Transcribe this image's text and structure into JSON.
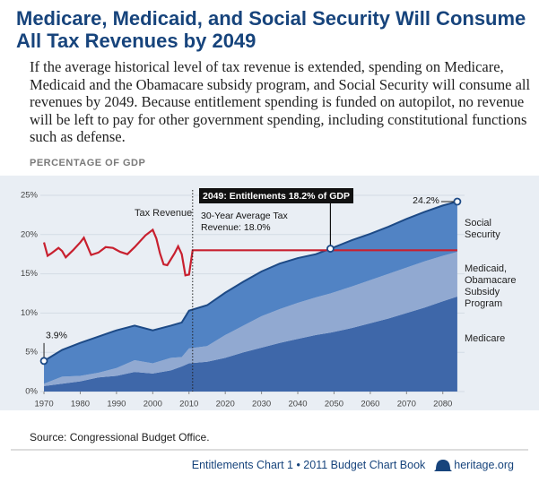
{
  "chart_data": {
    "type": "area",
    "title": "Medicare, Medicaid, and Social Security Will Consume All Tax Revenues by 2049",
    "subtitle": "If the average historical level of tax revenue is extended, spending on Medicare, Medicaid and the Obamacare subsidy program, and Social Security will consume all revenues by 2049. Because entitlement spending is funded on autopilot, no revenue will be left to pay for other government spending, including constitutional functions such as defense.",
    "y_label": "PERCENTAGE OF GDP",
    "x": [
      1970,
      1975,
      1980,
      1985,
      1990,
      1995,
      2000,
      2005,
      2008,
      2010,
      2015,
      2020,
      2025,
      2030,
      2035,
      2040,
      2045,
      2049,
      2055,
      2060,
      2065,
      2070,
      2075,
      2080,
      2084
    ],
    "series": [
      {
        "name": "Medicare",
        "color": "#3e67a9",
        "values": [
          0.7,
          1.0,
          1.3,
          1.8,
          2.0,
          2.5,
          2.3,
          2.7,
          3.2,
          3.6,
          3.8,
          4.3,
          5.0,
          5.6,
          6.2,
          6.7,
          7.2,
          7.5,
          8.1,
          8.7,
          9.3,
          10.0,
          10.7,
          11.5,
          12.1
        ]
      },
      {
        "name": "Medicaid, Obamacare Subsidy Program",
        "color": "#91a9d1",
        "values": [
          0.3,
          0.9,
          0.7,
          0.6,
          1.0,
          1.5,
          1.3,
          1.6,
          1.2,
          1.9,
          2.0,
          2.9,
          3.4,
          4.0,
          4.3,
          4.6,
          4.8,
          5.0,
          5.3,
          5.5,
          5.7,
          5.8,
          5.9,
          5.8,
          5.7
        ]
      },
      {
        "name": "Social Security",
        "color": "#5183c4",
        "values": [
          2.9,
          3.4,
          4.2,
          4.6,
          4.8,
          4.4,
          4.2,
          4.1,
          4.4,
          4.8,
          5.2,
          5.4,
          5.6,
          5.7,
          5.8,
          5.7,
          5.5,
          5.7,
          5.9,
          5.9,
          6.0,
          6.2,
          6.3,
          6.4,
          6.4
        ]
      },
      {
        "name": "Tax Revenue",
        "type": "line",
        "color": "#c8202f",
        "x": [
          1970,
          1971,
          1972,
          1974,
          1975,
          1976,
          1978,
          1980,
          1981,
          1983,
          1985,
          1987,
          1989,
          1991,
          1993,
          1995,
          1998,
          2000,
          2001,
          2002,
          2003,
          2004,
          2006,
          2007,
          2008,
          2009,
          2010,
          2011,
          2084
        ],
        "values": [
          19.0,
          17.3,
          17.6,
          18.3,
          17.9,
          17.1,
          18.0,
          19.0,
          19.6,
          17.4,
          17.7,
          18.4,
          18.3,
          17.8,
          17.5,
          18.4,
          19.9,
          20.6,
          19.5,
          17.6,
          16.2,
          16.1,
          17.6,
          18.5,
          17.5,
          14.8,
          14.9,
          18.0,
          18.0
        ]
      }
    ],
    "annotations": [
      "3.9%",
      "24.2%",
      "30-Year Average Tax Revenue: 18.0%",
      "2049: Entitlements 18.2% of GDP"
    ],
    "xlim": [
      1969,
      2086
    ],
    "ylim": [
      0,
      25
    ],
    "xticks": [
      1970,
      1980,
      1990,
      2000,
      2010,
      2020,
      2030,
      2040,
      2050,
      2060,
      2070,
      2080
    ],
    "yticks": [
      {
        "value": 0,
        "label": "0%"
      },
      {
        "value": 5,
        "label": "5%"
      },
      {
        "value": 10,
        "label": "10%"
      },
      {
        "value": 15,
        "label": "15%"
      },
      {
        "value": 20,
        "label": "20%"
      },
      {
        "value": 25,
        "label": "25%"
      }
    ],
    "grid": true,
    "source": "Source: Congressional Budget Office.",
    "footer": "Entitlements Chart 1 • 2011 Budget Chart Book",
    "footer_site": "heritage.org"
  }
}
